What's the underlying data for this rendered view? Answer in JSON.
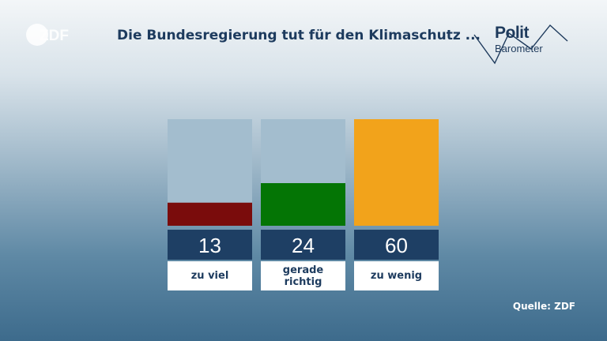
{
  "header": {
    "title": "Die Bundesregierung tut für den Klimaschutz ...",
    "brand_logo_text": "ZDF",
    "series_logo_line1": "Polit",
    "series_logo_line2": "Barometer"
  },
  "footer": {
    "source": "Quelle: ZDF"
  },
  "chart_data": {
    "type": "bar",
    "title": "Die Bundesregierung tut für den Klimaschutz ...",
    "categories": [
      "zu viel",
      "gerade richtig",
      "zu wenig"
    ],
    "category_lines": [
      [
        "zu viel"
      ],
      [
        "gerade",
        "richtig"
      ],
      [
        "zu wenig"
      ]
    ],
    "values": [
      13,
      24,
      60
    ],
    "value_labels": [
      "13",
      "24",
      "60"
    ],
    "ylim": [
      0,
      60
    ],
    "grid": false,
    "legend": "none",
    "colors": [
      "#7a0c0c",
      "#047505",
      "#f2a31b"
    ],
    "track_color": "#a3bdce",
    "value_box_color": "#1e3f64",
    "label_box_color": "#ffffff"
  }
}
